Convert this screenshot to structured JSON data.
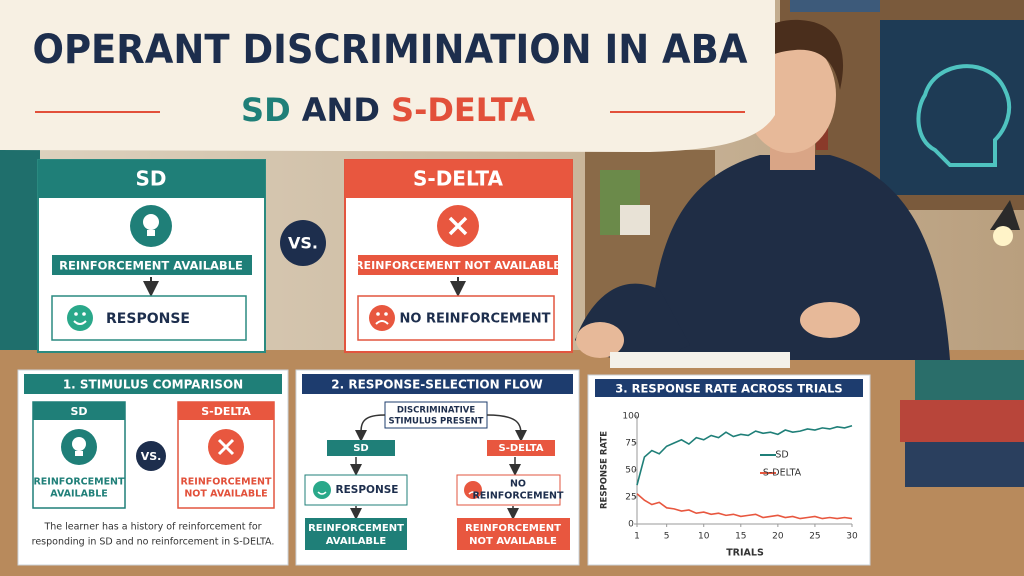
{
  "header": {
    "title": "OPERANT DISCRIMINATION IN ABA",
    "subtitle": {
      "part1": "SD",
      "part2": "AND",
      "part3": "S-DELTA"
    }
  },
  "sd_card": {
    "title": "SD",
    "condition": "REINFORCEMENT AVAILABLE",
    "outcome": "RESPONSE"
  },
  "vs": "VS.",
  "sdelta_card": {
    "title": "S-DELTA",
    "condition": "REINFORCEMENT NOT AVAILABLE",
    "outcome": "NO REINFORCEMENT"
  },
  "panel1": {
    "title": "1. STIMULUS COMPARISON",
    "sd": {
      "title": "SD",
      "lines": [
        "REINFORCEMENT",
        "AVAILABLE"
      ]
    },
    "vs": "VS.",
    "sdelta": {
      "title": "S-DELTA",
      "lines": [
        "REINFORCEMENT",
        "NOT AVAILABLE"
      ]
    },
    "note": [
      "The learner has a history of reinforcement for",
      "responding in SD and no reinforcement in S-DELTA."
    ]
  },
  "panel2": {
    "title": "2. RESPONSE-SELECTION FLOW",
    "start": [
      "DISCRIMINATIVE",
      "STIMULUS PRESENT"
    ],
    "sd": "SD",
    "sdelta": "S-DELTA",
    "sd_response": "RESPONSE",
    "sdelta_response": [
      "NO",
      "REINFORCEMENT"
    ],
    "sd_result": [
      "REINFORCEMENT",
      "AVAILABLE"
    ],
    "sdelta_result": [
      "REINFORCEMENT",
      "NOT AVAILABLE"
    ]
  },
  "chart": {
    "type": "line",
    "title": "3. RESPONSE RATE ACROSS TRIALS",
    "y_label": "RESPONSE RATE",
    "x_label": "TRIALS",
    "x": [
      1,
      2,
      3,
      4,
      5,
      6,
      7,
      8,
      9,
      10,
      11,
      12,
      13,
      14,
      15,
      16,
      17,
      18,
      19,
      20,
      21,
      22,
      23,
      24,
      25,
      26,
      27,
      28,
      29,
      30
    ],
    "xlim": [
      1,
      30
    ],
    "xticks": [
      1,
      5,
      10,
      15,
      20,
      25,
      30
    ],
    "ylim": [
      0,
      100
    ],
    "yticks": [
      0,
      25,
      50,
      75,
      100
    ],
    "series": [
      {
        "name": "SD",
        "color": "#1f7f78",
        "values": [
          36,
          62,
          68,
          65,
          72,
          75,
          78,
          74,
          80,
          78,
          82,
          80,
          85,
          81,
          83,
          82,
          86,
          84,
          85,
          83,
          87,
          85,
          86,
          88,
          87,
          89,
          88,
          90,
          89,
          91
        ]
      },
      {
        "name": "S-DELTA",
        "color": "#e8573f",
        "values": [
          28,
          22,
          18,
          20,
          15,
          14,
          12,
          13,
          10,
          11,
          9,
          10,
          8,
          9,
          7,
          8,
          9,
          6,
          7,
          8,
          6,
          7,
          5,
          6,
          7,
          5,
          6,
          5,
          6,
          5
        ]
      }
    ]
  }
}
